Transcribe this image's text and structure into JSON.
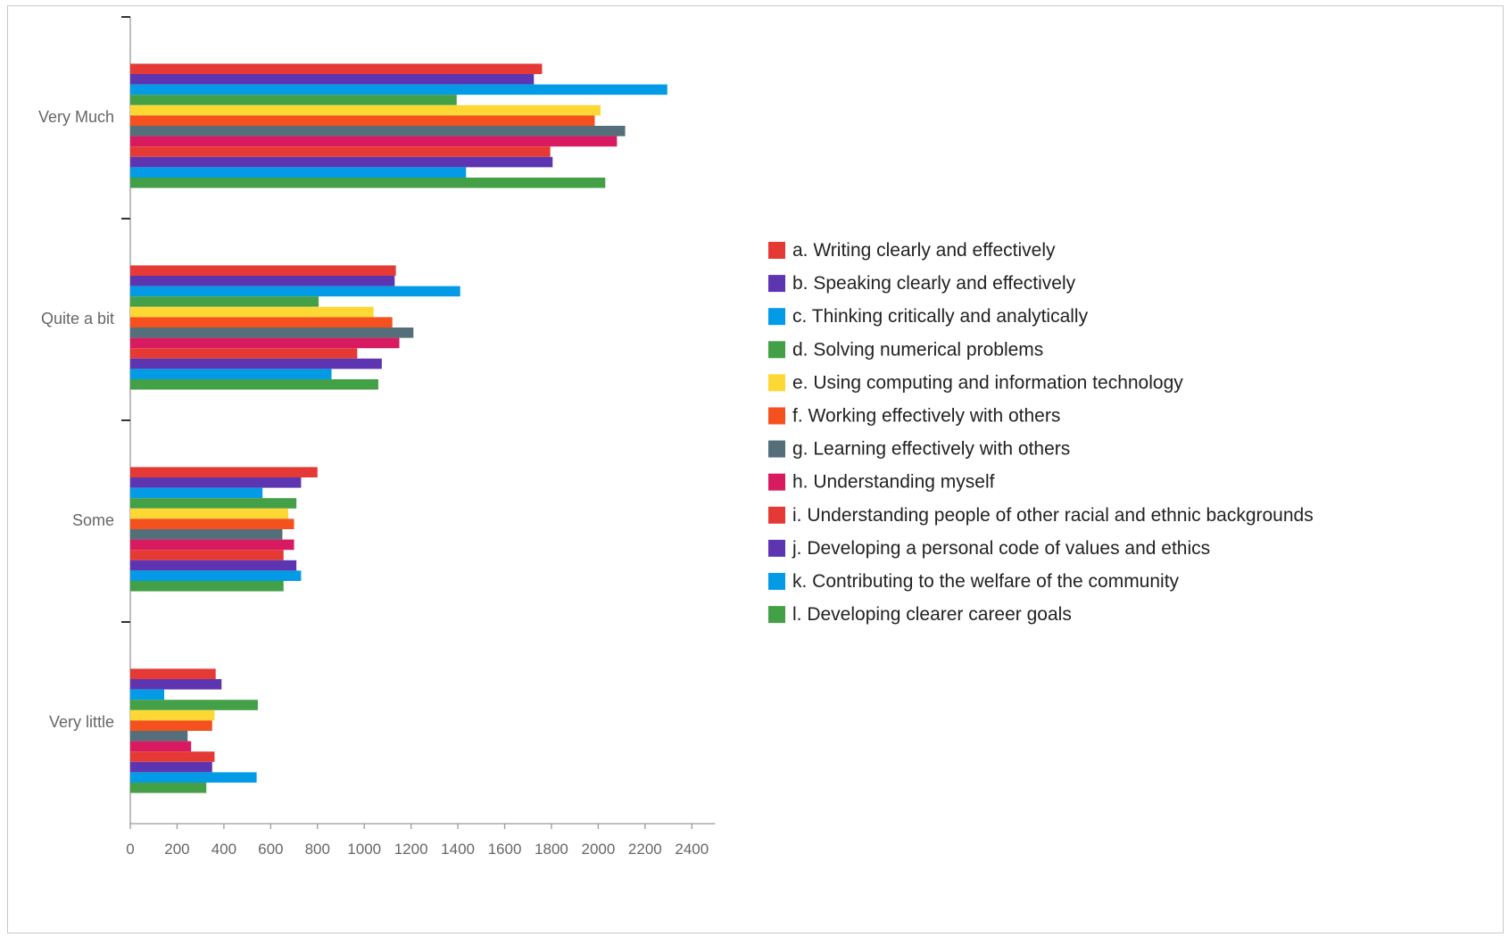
{
  "chart_data": {
    "type": "bar",
    "orientation": "horizontal",
    "categories": [
      "Very Much",
      "Quite a bit",
      "Some",
      "Very little"
    ],
    "series": [
      {
        "name": "a. Writing clearly and effectively",
        "color": "#e53935",
        "values": [
          1760,
          1135,
          800,
          365
        ]
      },
      {
        "name": "b. Speaking clearly and effectively",
        "color": "#5e35b1",
        "values": [
          1725,
          1130,
          730,
          390
        ]
      },
      {
        "name": "c. Thinking critically and analytically",
        "color": "#039be5",
        "values": [
          2295,
          1410,
          565,
          145
        ]
      },
      {
        "name": "d. Solving numerical problems",
        "color": "#43a047",
        "values": [
          1395,
          805,
          710,
          545
        ]
      },
      {
        "name": "e. Using computing and information technology",
        "color": "#fdd835",
        "values": [
          2010,
          1040,
          675,
          360
        ]
      },
      {
        "name": "f. Working effectively with others",
        "color": "#f4511e",
        "values": [
          1985,
          1120,
          700,
          350
        ]
      },
      {
        "name": "g. Learning effectively with others",
        "color": "#546e7a",
        "values": [
          2115,
          1210,
          650,
          245
        ]
      },
      {
        "name": "h. Understanding myself",
        "color": "#d81b60",
        "values": [
          2080,
          1150,
          700,
          260
        ]
      },
      {
        "name": "i. Understanding people of other racial and ethnic backgrounds",
        "color": "#e53935",
        "values": [
          1795,
          970,
          655,
          360
        ]
      },
      {
        "name": "j. Developing a personal code of values and ethics",
        "color": "#5e35b1",
        "values": [
          1805,
          1075,
          710,
          350
        ]
      },
      {
        "name": "k. Contributing to the welfare of the community",
        "color": "#039be5",
        "values": [
          1435,
          860,
          730,
          540
        ]
      },
      {
        "name": "l. Developing clearer career goals",
        "color": "#43a047",
        "values": [
          2030,
          1060,
          655,
          325
        ]
      }
    ],
    "x_ticks": [
      0,
      200,
      400,
      600,
      800,
      1000,
      1200,
      1400,
      1600,
      1800,
      2000,
      2200,
      2400
    ],
    "xlim": [
      0,
      2500
    ],
    "title": "",
    "xlabel": "",
    "ylabel": "",
    "grid": false,
    "legend_position": "right"
  }
}
